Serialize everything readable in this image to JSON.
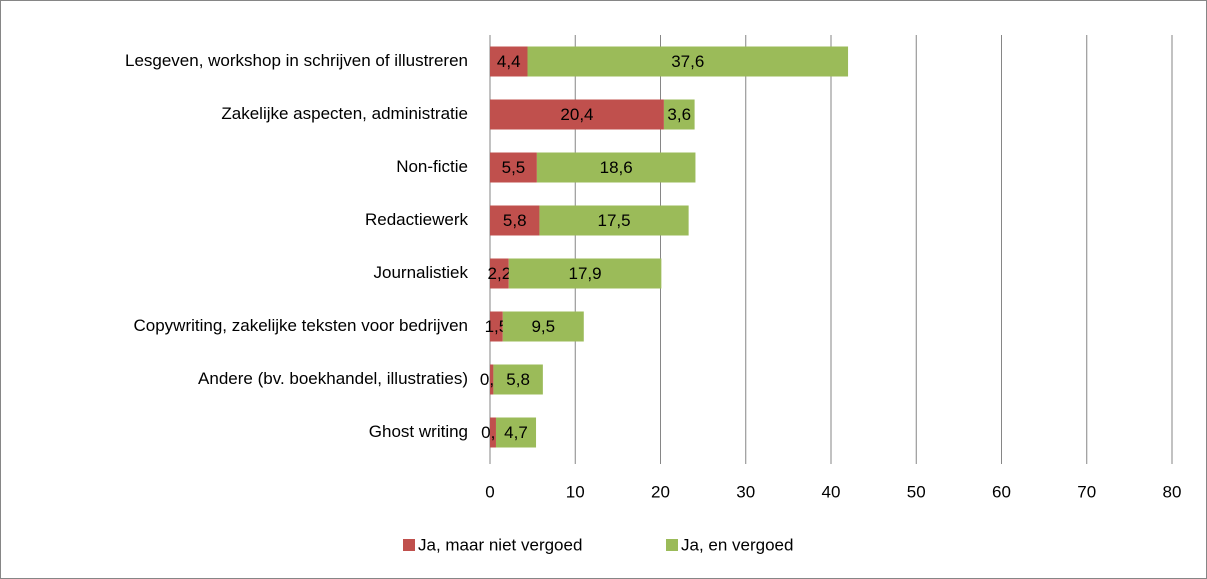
{
  "chart_data": {
    "type": "bar",
    "orientation": "horizontal",
    "stacked": true,
    "categories": [
      "Lesgeven, workshop in schrijven of illustreren",
      "Zakelijke aspecten, administratie",
      "Non-fictie",
      "Redactiewerk",
      "Journalistiek",
      "Copywriting, zakelijke teksten voor bedrijven",
      "Andere (bv. boekhandel, illustraties)",
      "Ghost writing"
    ],
    "series": [
      {
        "name": "Ja, maar niet vergoed",
        "color": "#c0504d",
        "values": [
          4.4,
          20.4,
          5.5,
          5.8,
          2.2,
          1.5,
          0.4,
          0.7
        ],
        "value_labels": [
          "4,4",
          "20,4",
          "5,5",
          "5,8",
          "2,2",
          "1,5",
          "0,4",
          "0,7"
        ]
      },
      {
        "name": "Ja, en vergoed",
        "color": "#9bbb59",
        "values": [
          37.6,
          3.6,
          18.6,
          17.5,
          17.9,
          9.5,
          5.8,
          4.7
        ],
        "value_labels": [
          "37,6",
          "3,6",
          "18,6",
          "17,5",
          "17,9",
          "9,5",
          "5,8",
          "4,7"
        ]
      }
    ],
    "xlim": [
      0,
      80
    ],
    "xticks": [
      0,
      10,
      20,
      30,
      40,
      50,
      60,
      70,
      80
    ],
    "grid": true,
    "legend": "bottom"
  }
}
